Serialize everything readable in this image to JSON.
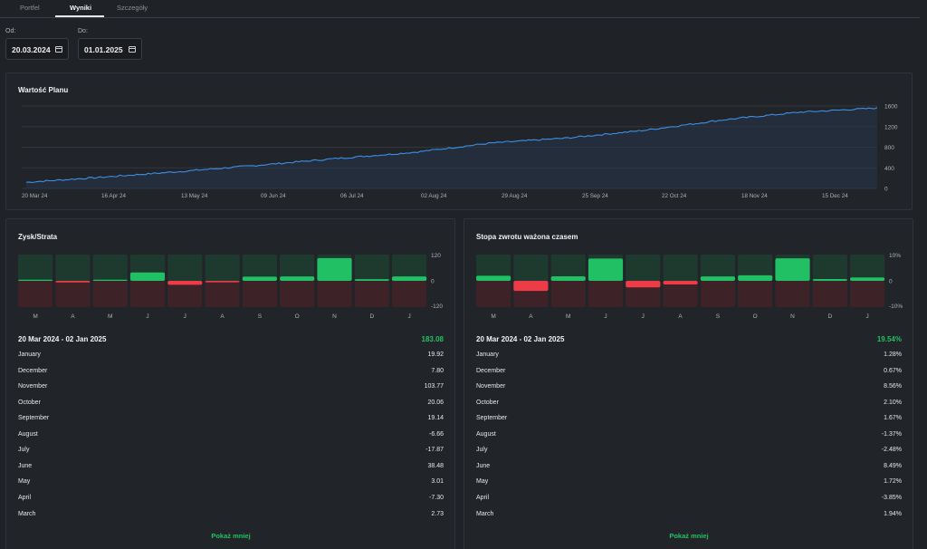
{
  "tabs": [
    {
      "label": "Portfel"
    },
    {
      "label": "Wyniki"
    },
    {
      "label": "Szczegóły"
    }
  ],
  "filters": {
    "from_label": "Od:",
    "from_value": "20.03.2024",
    "to_label": "Do:",
    "to_value": "01.01.2025"
  },
  "plan_chart": {
    "title": "Wartość Planu",
    "y_ticks": [
      "1600",
      "1200",
      "800",
      "400",
      "0"
    ],
    "x_ticks": [
      "20 Mar 24",
      "16 Apr 24",
      "13 May 24",
      "09 Jun 24",
      "06 Jul 24",
      "02 Aug 24",
      "29 Aug 24",
      "25 Sep 24",
      "22 Oct 24",
      "18 Nov 24",
      "15 Dec 24"
    ]
  },
  "chart_data": [
    {
      "type": "area",
      "title": "Wartość Planu",
      "x": [
        "20 Mar 24",
        "16 Apr 24",
        "13 May 24",
        "09 Jun 24",
        "06 Jul 24",
        "02 Aug 24",
        "29 Aug 24",
        "25 Sep 24",
        "22 Oct 24",
        "18 Nov 24",
        "15 Dec 24",
        "02 Jan 25"
      ],
      "y": [
        120,
        220,
        330,
        450,
        580,
        700,
        880,
        980,
        1130,
        1330,
        1480,
        1560
      ],
      "ylim": [
        0,
        1600
      ],
      "grid": true
    },
    {
      "type": "bar",
      "title": "Zysk/Strata",
      "categories": [
        "M",
        "A",
        "M",
        "J",
        "J",
        "A",
        "S",
        "O",
        "N",
        "D",
        "J"
      ],
      "values": [
        2.73,
        -7.3,
        3.01,
        38.48,
        -17.87,
        -6.66,
        19.14,
        20.06,
        103.77,
        7.8,
        19.92
      ],
      "ylim": [
        -120,
        120
      ],
      "y_ticks": [
        "120",
        "0",
        "-120"
      ]
    },
    {
      "type": "bar",
      "title": "Stopa zwrotu ważona czasem",
      "categories": [
        "M",
        "A",
        "M",
        "J",
        "J",
        "A",
        "S",
        "O",
        "N",
        "D",
        "J"
      ],
      "values": [
        1.94,
        -3.85,
        1.72,
        8.49,
        -2.48,
        -1.37,
        1.67,
        2.1,
        8.56,
        0.67,
        1.28
      ],
      "ylim": [
        -10,
        10
      ],
      "y_ticks": [
        "10%",
        "0",
        "-10%"
      ]
    }
  ],
  "pnl": {
    "title": "Zysk/Strata",
    "period": "20 Mar 2024 - 02 Jan 2025",
    "total": "183.08",
    "rows": [
      {
        "month": "January",
        "value": "19.92"
      },
      {
        "month": "December",
        "value": "7.80"
      },
      {
        "month": "November",
        "value": "103.77"
      },
      {
        "month": "October",
        "value": "20.06"
      },
      {
        "month": "September",
        "value": "19.14"
      },
      {
        "month": "August",
        "value": "-6.66"
      },
      {
        "month": "July",
        "value": "-17.87"
      },
      {
        "month": "June",
        "value": "38.48"
      },
      {
        "month": "May",
        "value": "3.01"
      },
      {
        "month": "April",
        "value": "-7.30"
      },
      {
        "month": "March",
        "value": "2.73"
      }
    ],
    "show_less": "Pokaż mniej"
  },
  "twr": {
    "title": "Stopa zwrotu ważona czasem",
    "period": "20 Mar 2024 - 02 Jan 2025",
    "total": "19.54%",
    "rows": [
      {
        "month": "January",
        "value": "1.28%"
      },
      {
        "month": "December",
        "value": "0.67%"
      },
      {
        "month": "November",
        "value": "8.56%"
      },
      {
        "month": "October",
        "value": "2.10%"
      },
      {
        "month": "September",
        "value": "1.67%"
      },
      {
        "month": "August",
        "value": "-1.37%"
      },
      {
        "month": "July",
        "value": "-2.48%"
      },
      {
        "month": "June",
        "value": "8.49%"
      },
      {
        "month": "May",
        "value": "1.72%"
      },
      {
        "month": "April",
        "value": "-3.85%"
      },
      {
        "month": "March",
        "value": "1.94%"
      }
    ],
    "show_less": "Pokaż mniej"
  },
  "colors": {
    "positive": "#21c064",
    "negative": "#ee3b48",
    "line": "#3d8fe6",
    "pos_bg": "#1e3a2e",
    "neg_bg": "#3d2227"
  }
}
